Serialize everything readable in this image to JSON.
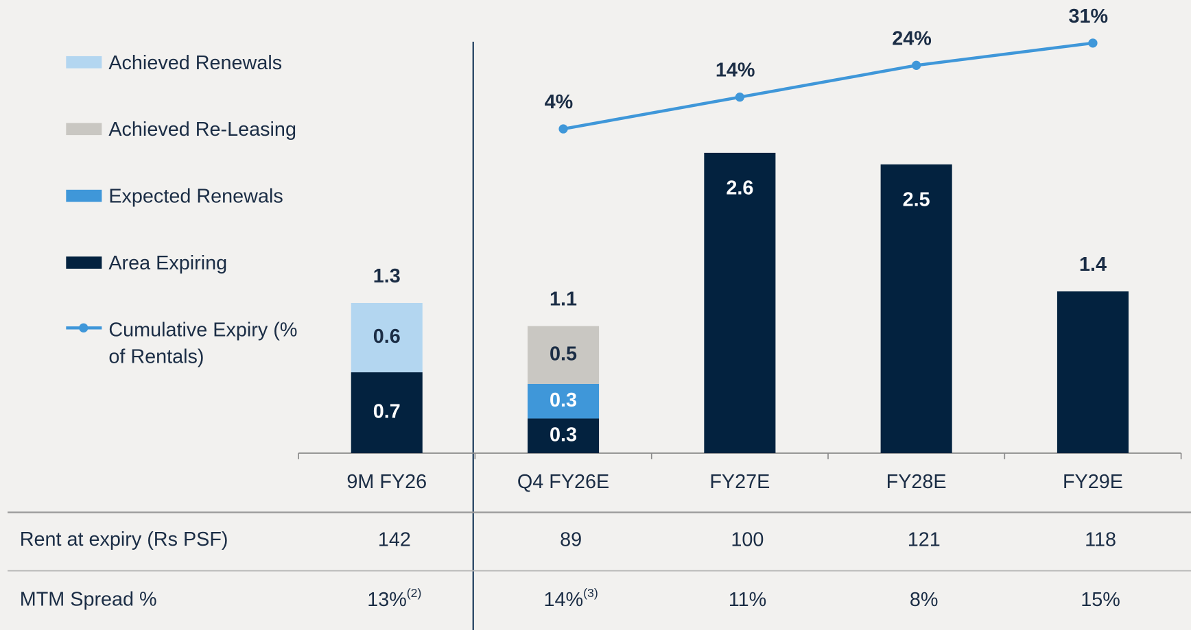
{
  "chart_data": {
    "type": "bar",
    "stacked": true,
    "categories": [
      "9M FY26",
      "Q4 FY26E",
      "FY27E",
      "FY28E",
      "FY29E"
    ],
    "series": [
      {
        "name": "Achieved Renewals",
        "color": "#b3d6f0",
        "values": [
          0.6,
          null,
          null,
          null,
          null
        ]
      },
      {
        "name": "Achieved Re-Leasing",
        "color": "#c9c7c2",
        "values": [
          null,
          0.5,
          null,
          null,
          null
        ]
      },
      {
        "name": "Expected Renewals",
        "color": "#3f97d9",
        "values": [
          null,
          0.3,
          null,
          null,
          null
        ]
      },
      {
        "name": "Area Expiring",
        "color": "#03223f",
        "values": [
          0.7,
          0.3,
          2.6,
          2.5,
          1.4
        ]
      },
      {
        "name": "Cumulative Expiry (% of Rentals)",
        "type": "line",
        "axis": "y2",
        "color": "#3f97d9",
        "values": [
          null,
          4,
          14,
          24,
          31
        ],
        "value_labels": [
          null,
          "4%",
          "14%",
          "24%",
          "31%"
        ]
      }
    ],
    "totals": [
      1.3,
      1.1,
      null,
      null,
      1.4
    ],
    "ylim": [
      0,
      3.66
    ],
    "y2lim": [
      -98,
      35
    ],
    "table": {
      "rows": [
        {
          "label": "Rent at expiry (Rs PSF)",
          "values": [
            142,
            89,
            100,
            121,
            118
          ]
        },
        {
          "label": "MTM Spread %",
          "values": [
            13,
            14,
            11,
            8,
            15
          ],
          "value_labels": [
            "13%",
            "14%",
            "11%",
            "8%",
            "15%"
          ],
          "footnotes": [
            "(2)",
            "(3)",
            null,
            null,
            null
          ]
        }
      ]
    }
  }
}
